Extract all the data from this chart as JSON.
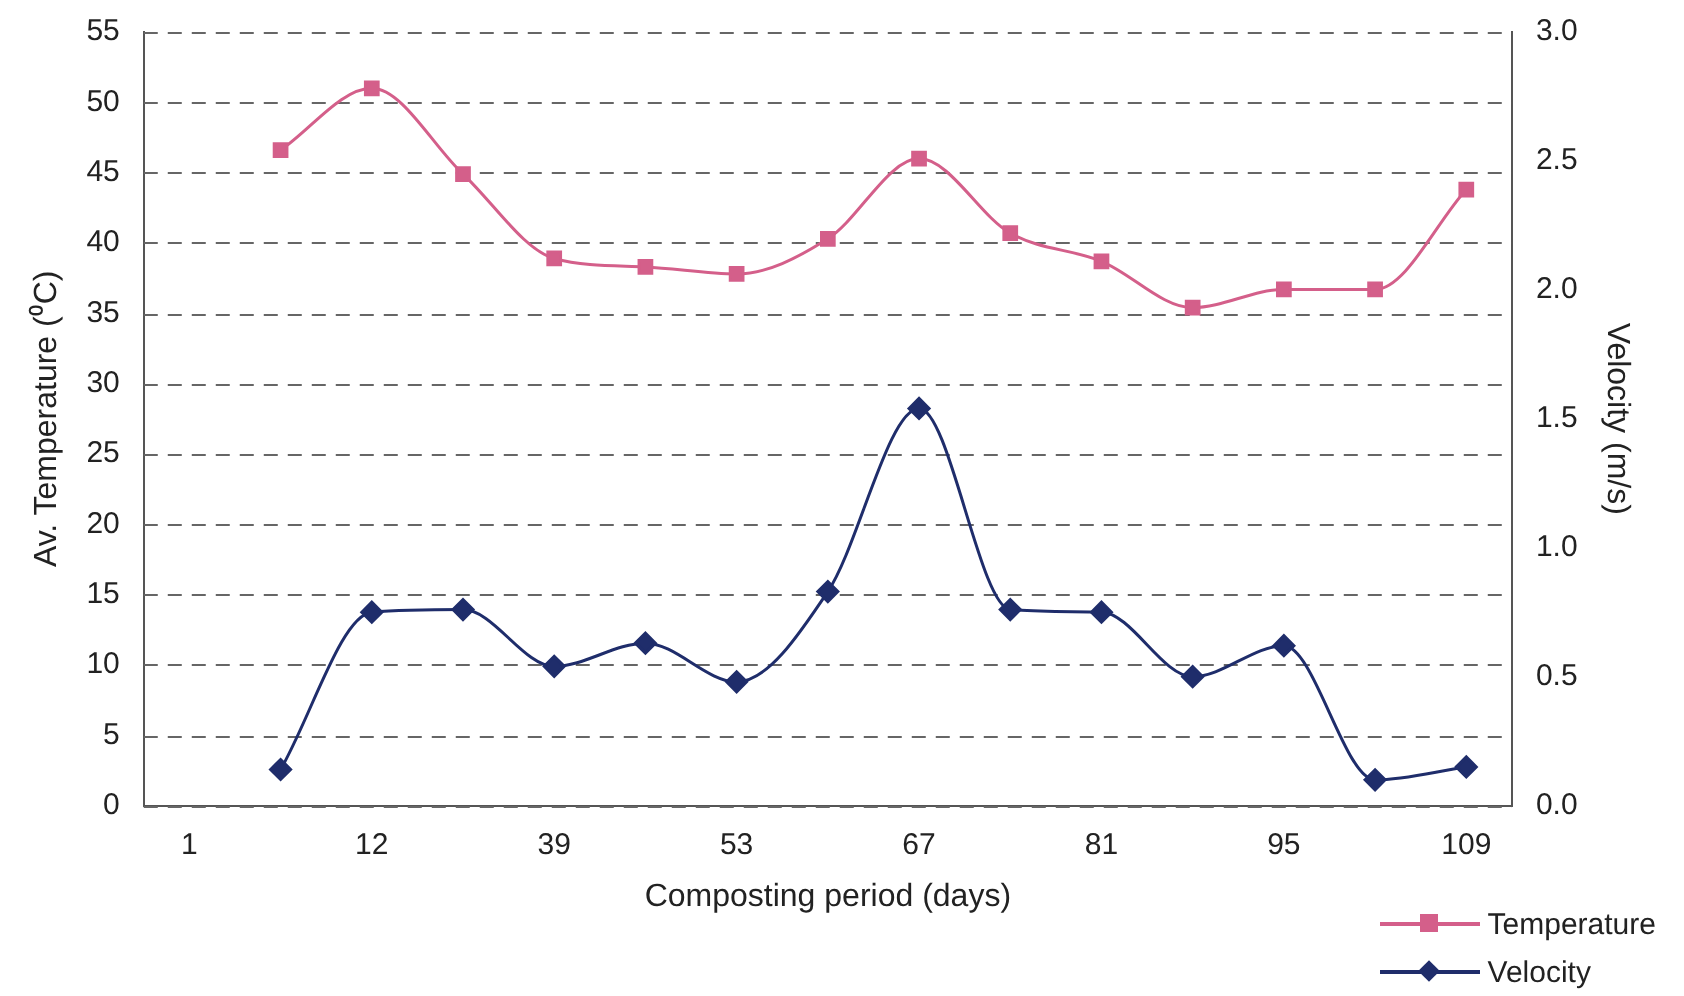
{
  "chart_data": {
    "type": "line",
    "xlabel": "Composting period (days)",
    "ylabel": "Av. Temperature (⁰C)",
    "y2label": "Velocity (m/s)",
    "categories": [
      "1",
      null,
      "12",
      null,
      "39",
      null,
      "53",
      null,
      "67",
      null,
      "81",
      null,
      "95",
      null,
      "109"
    ],
    "series": [
      {
        "name": "Temperature",
        "color": "#d45f8a",
        "marker": "square",
        "values": [
          null,
          46.6,
          51.0,
          44.9,
          38.9,
          38.3,
          37.8,
          40.3,
          46.0,
          40.7,
          38.7,
          35.4,
          36.7,
          36.7,
          43.8
        ]
      },
      {
        "name": "Velocity",
        "color": "#1f2d6b",
        "marker": "diamond",
        "axis": "y2",
        "values": [
          null,
          0.14,
          0.75,
          0.76,
          0.54,
          0.63,
          0.48,
          0.83,
          1.54,
          0.76,
          0.75,
          0.5,
          0.62,
          0.1,
          0.15
        ]
      }
    ],
    "ylim": [
      0,
      55
    ],
    "yticks": [
      0,
      5,
      10,
      15,
      20,
      25,
      30,
      35,
      40,
      45,
      50,
      55
    ],
    "y2lim": [
      0,
      3
    ],
    "y2ticks": [
      {
        "value": 0,
        "label": "0.0"
      },
      {
        "value": 0.5,
        "label": "0.5"
      },
      {
        "value": 1,
        "label": "1.0"
      },
      {
        "value": 1.5,
        "label": "1.5"
      },
      {
        "value": 2,
        "label": "2.0"
      },
      {
        "value": 2.5,
        "label": "2.5"
      },
      {
        "value": 3,
        "label": "3.0"
      }
    ],
    "grid": "y",
    "legend": "bottom right"
  }
}
